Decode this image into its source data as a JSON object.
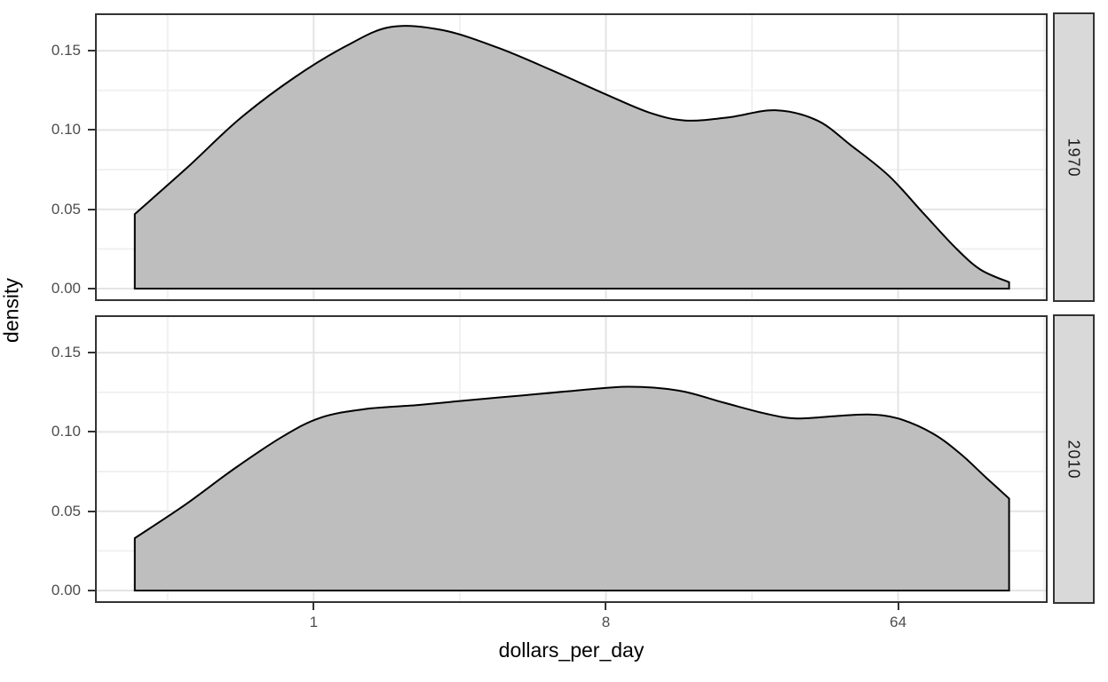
{
  "chart_data": {
    "type": "area",
    "subtype": "faceted-density",
    "title": "",
    "xlabel": "dollars_per_day",
    "ylabel": "density",
    "x_scale": "log2",
    "grid": true,
    "legend": "none",
    "xlim_log2": [
      -2.245,
      7.535
    ],
    "ylim": [
      -0.00785,
      0.1736
    ],
    "x_ticks": [
      {
        "label": "1",
        "value": 1
      },
      {
        "label": "8",
        "value": 8
      },
      {
        "label": "64",
        "value": 64
      }
    ],
    "x_minor_log2": [
      -1.5,
      1.5,
      4.5,
      7.5
    ],
    "y_ticks": [
      {
        "label": "0.00",
        "value": 0.0
      },
      {
        "label": "0.05",
        "value": 0.05
      },
      {
        "label": "0.10",
        "value": 0.1
      },
      {
        "label": "0.15",
        "value": 0.15
      }
    ],
    "y_minor": [
      0.025,
      0.075,
      0.125
    ],
    "facets": [
      {
        "label": "1970",
        "series_name": "density of dollars_per_day in 1970",
        "points": [
          [
            0.28,
            0.047
          ],
          [
            0.41,
            0.077
          ],
          [
            0.59,
            0.107
          ],
          [
            0.87,
            0.133
          ],
          [
            1.26,
            0.153
          ],
          [
            1.73,
            0.165
          ],
          [
            2.5,
            0.163
          ],
          [
            3.7,
            0.152
          ],
          [
            5.4,
            0.138
          ],
          [
            7.9,
            0.123
          ],
          [
            10.9,
            0.111
          ],
          [
            14.1,
            0.106
          ],
          [
            19.2,
            0.108
          ],
          [
            26.7,
            0.1125
          ],
          [
            36,
            0.106
          ],
          [
            46,
            0.09
          ],
          [
            60,
            0.071
          ],
          [
            77,
            0.047
          ],
          [
            96,
            0.026
          ],
          [
            115,
            0.012
          ],
          [
            141,
            0.004
          ]
        ]
      },
      {
        "label": "2010",
        "series_name": "density of dollars_per_day in 2010",
        "points": [
          [
            0.28,
            0.033
          ],
          [
            0.4,
            0.054
          ],
          [
            0.57,
            0.077
          ],
          [
            0.8,
            0.097
          ],
          [
            1.05,
            0.109
          ],
          [
            1.45,
            0.1145
          ],
          [
            2.1,
            0.117
          ],
          [
            3.0,
            0.12
          ],
          [
            4.4,
            0.123
          ],
          [
            6.4,
            0.126
          ],
          [
            9.4,
            0.1285
          ],
          [
            13.5,
            0.126
          ],
          [
            18.5,
            0.1185
          ],
          [
            25,
            0.1115
          ],
          [
            31,
            0.1085
          ],
          [
            41,
            0.11
          ],
          [
            52,
            0.111
          ],
          [
            64,
            0.1085
          ],
          [
            82,
            0.099
          ],
          [
            100,
            0.086
          ],
          [
            120,
            0.071
          ],
          [
            141,
            0.058
          ]
        ]
      }
    ],
    "colors": {
      "area_fill": "#BEBEBE",
      "area_stroke": "#000000",
      "panel_border": "#333333",
      "panel_background": "#FFFFFF",
      "grid_major": "#E4E4E4",
      "grid_minor": "#F1F1F1",
      "strip_background": "#D9D9D9",
      "strip_text": "#1A1A1A",
      "tick_mark": "#333333",
      "tick_text": "#4D4D4D",
      "axis_title_text": "#000000"
    }
  }
}
